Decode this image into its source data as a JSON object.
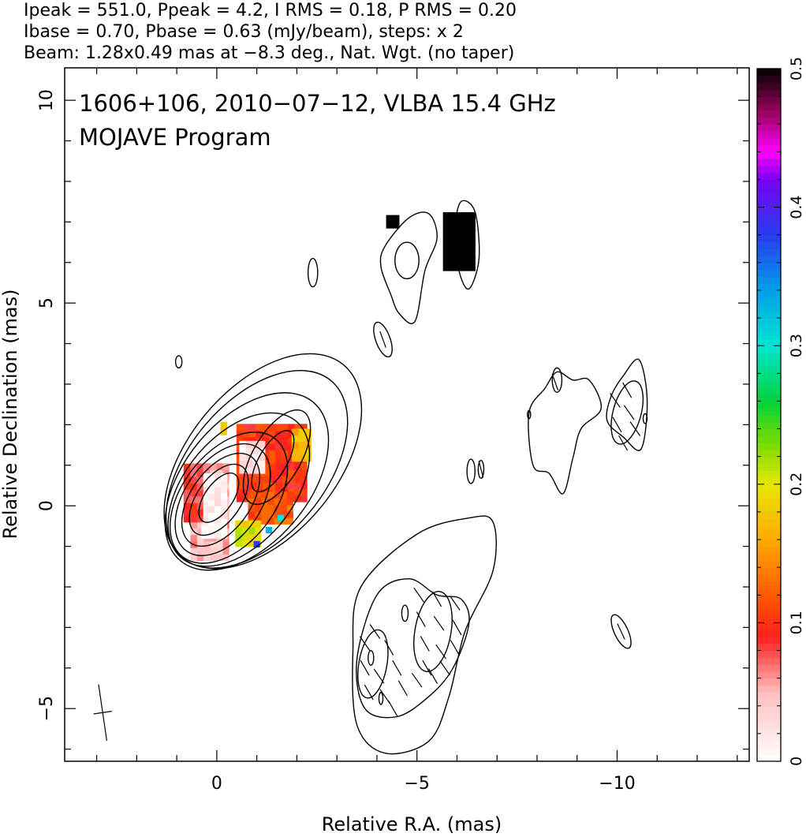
{
  "header": {
    "line1": "Ipeak = 551.0, Ppeak = 4.2, I RMS = 0.18, P RMS = 0.20",
    "line2": "Ibase = 0.70, Pbase = 0.63 (mJy/beam), steps: x 2",
    "line3": "Beam: 1.28x0.49 mas at −8.3 deg., Nat. Wgt. (no taper)"
  },
  "panel": {
    "title_line1": "1606+106, 2010−07−12, VLBA 15.4 GHz",
    "title_line2": "MOJAVE Program"
  },
  "axes": {
    "xlabel": "Relative R.A. (mas)",
    "ylabel": "Relative Declination (mas)"
  },
  "chart_data": {
    "type": "heatmap",
    "description_source": "VLBA 15.4 GHz total intensity contours with fractional polarization color map",
    "x_range": [
      3.8,
      -13.3
    ],
    "y_range": [
      -6.3,
      10.8
    ],
    "x_ticks": [
      {
        "value": 0,
        "label": "0"
      },
      {
        "value": -5,
        "label": "−5"
      },
      {
        "value": -10,
        "label": "−10"
      }
    ],
    "y_ticks": [
      {
        "value": -5,
        "label": "−5"
      },
      {
        "value": 0,
        "label": "0"
      },
      {
        "value": 5,
        "label": "5"
      },
      {
        "value": 10,
        "label": "10"
      }
    ],
    "colorbar": {
      "range": [
        0,
        0.5
      ],
      "ticks": [
        {
          "value": 0,
          "label": "0"
        },
        {
          "value": 0.1,
          "label": "0.1"
        },
        {
          "value": 0.2,
          "label": "0.2"
        },
        {
          "value": 0.3,
          "label": "0.3"
        },
        {
          "value": 0.4,
          "label": "0.4"
        },
        {
          "value": 0.5,
          "label": "0.5"
        }
      ]
    },
    "ipeak_mJy_per_beam": 551.0,
    "ppeak_mJy_per_beam": 4.2,
    "i_rms": 0.18,
    "p_rms": 0.2,
    "ibase": 0.7,
    "pbase": 0.63,
    "contour_step_factor": 2,
    "beam": {
      "major_mas": 1.28,
      "minor_mas": 0.49,
      "pa_deg": -8.3
    },
    "core_contours": [
      {
        "cx": -0.05,
        "cy": 0.2,
        "rx": 0.35,
        "ry": 0.7,
        "angle": 35
      },
      {
        "cx": -0.05,
        "cy": 0.15,
        "rx": 0.55,
        "ry": 1.0,
        "angle": 35
      },
      {
        "cx": -0.1,
        "cy": 0.15,
        "rx": 0.75,
        "ry": 1.3,
        "angle": 35
      },
      {
        "cx": -0.15,
        "cy": 0.15,
        "rx": 0.95,
        "ry": 1.55,
        "angle": 35
      },
      {
        "cx": -0.3,
        "cy": 0.2,
        "rx": 1.15,
        "ry": 1.85,
        "angle": 38
      },
      {
        "cx": -0.55,
        "cy": 0.4,
        "rx": 1.35,
        "ry": 2.2,
        "angle": 40
      },
      {
        "cx": -0.75,
        "cy": 0.6,
        "rx": 1.55,
        "ry": 2.55,
        "angle": 40
      },
      {
        "cx": -1.0,
        "cy": 0.9,
        "rx": 1.7,
        "ry": 2.85,
        "angle": 40
      },
      {
        "cx": -1.15,
        "cy": 1.1,
        "rx": 1.85,
        "ry": 3.1,
        "angle": 40
      }
    ],
    "jet_knot_contours": [
      {
        "cx": -1.4,
        "cy": 1.1,
        "rx": 0.35,
        "ry": 0.85,
        "angle": 30
      },
      {
        "cx": -1.5,
        "cy": 1.2,
        "rx": 0.6,
        "ry": 1.3,
        "angle": 30
      }
    ],
    "isolated_contours": [
      {
        "cx": 0.95,
        "cy": 3.55,
        "rx": 0.08,
        "ry": 0.15,
        "angle": 0
      },
      {
        "cx": -2.4,
        "cy": 5.75,
        "rx": 0.12,
        "ry": 0.35,
        "angle": 0
      },
      {
        "cx": -6.35,
        "cy": 0.85,
        "rx": 0.1,
        "ry": 0.3,
        "angle": 0
      },
      {
        "cx": -6.6,
        "cy": 0.9,
        "rx": 0.07,
        "ry": 0.22,
        "angle": 0
      },
      {
        "cx": -7.8,
        "cy": 2.25,
        "rx": 0.04,
        "ry": 0.1,
        "angle": 0
      },
      {
        "cx": -10.7,
        "cy": 2.15,
        "rx": 0.05,
        "ry": 0.12,
        "angle": 0
      }
    ],
    "northern_component": {
      "outer": [
        [
          -4.2,
          6.4
        ],
        [
          -4.8,
          7.1
        ],
        [
          -5.3,
          7.2
        ],
        [
          -5.5,
          6.6
        ],
        [
          -5.2,
          5.8
        ],
        [
          -4.95,
          4.55
        ],
        [
          -4.55,
          4.75
        ],
        [
          -4.35,
          5.2
        ],
        [
          -4.1,
          5.9
        ]
      ],
      "inner": {
        "cx": -4.75,
        "cy": 6.05,
        "rx": 0.3,
        "ry": 0.45,
        "angle": 0
      },
      "spur": {
        "cx": -4.15,
        "cy": 4.1,
        "rx": 0.18,
        "ry": 0.45,
        "angle": -20
      },
      "blob": [
        [
          -5.95,
          6.8
        ],
        [
          -6.1,
          7.5
        ],
        [
          -6.45,
          7.25
        ],
        [
          -6.55,
          6.1
        ],
        [
          -6.3,
          5.35
        ],
        [
          -6.05,
          5.8
        ]
      ]
    },
    "western_component": {
      "outer": [
        [
          -7.8,
          2.3
        ],
        [
          -8.2,
          2.9
        ],
        [
          -8.5,
          3.3
        ],
        [
          -8.9,
          3.1
        ],
        [
          -9.3,
          3.1
        ],
        [
          -9.6,
          2.4
        ],
        [
          -9.1,
          1.9
        ],
        [
          -8.9,
          1.2
        ],
        [
          -8.65,
          0.3
        ],
        [
          -8.3,
          0.8
        ],
        [
          -7.9,
          1.0
        ]
      ],
      "knot": {
        "cx": -8.5,
        "cy": 3.1,
        "rx": 0.12,
        "ry": 0.3,
        "angle": 0
      },
      "far_outer": [
        [
          -9.85,
          2.7
        ],
        [
          -10.15,
          3.2
        ],
        [
          -10.55,
          3.6
        ],
        [
          -10.75,
          2.6
        ],
        [
          -10.6,
          1.4
        ],
        [
          -10.15,
          1.7
        ],
        [
          -9.75,
          2.1
        ]
      ],
      "far_inner": {
        "cx": -10.25,
        "cy": 2.3,
        "rx": 0.35,
        "ry": 0.8,
        "angle": 15
      },
      "small": {
        "cx": -10.1,
        "cy": -3.1,
        "rx": 0.17,
        "ry": 0.45,
        "angle": -25
      }
    },
    "southern_component": {
      "outer": [
        [
          -3.4,
          -3.6
        ],
        [
          -3.6,
          -2.0
        ],
        [
          -5.0,
          -0.7
        ],
        [
          -6.3,
          -0.3
        ],
        [
          -6.9,
          -0.4
        ],
        [
          -6.9,
          -1.6
        ],
        [
          -6.2,
          -3.1
        ],
        [
          -5.8,
          -4.7
        ],
        [
          -5.3,
          -5.8
        ],
        [
          -4.2,
          -6.1
        ],
        [
          -3.5,
          -5.4
        ]
      ],
      "mid": [
        [
          -3.5,
          -3.8
        ],
        [
          -4.0,
          -2.2
        ],
        [
          -4.8,
          -1.8
        ],
        [
          -5.5,
          -2.2
        ],
        [
          -6.1,
          -2.3
        ],
        [
          -6.3,
          -2.9
        ],
        [
          -5.9,
          -4.0
        ],
        [
          -5.3,
          -4.7
        ],
        [
          -4.5,
          -5.2
        ],
        [
          -3.7,
          -5.0
        ]
      ],
      "inner_left": {
        "cx": -3.9,
        "cy": -3.9,
        "rx": 0.35,
        "ry": 0.85,
        "angle": 10
      },
      "inner_right": {
        "cx": -5.4,
        "cy": -3.1,
        "rx": 0.45,
        "ry": 1.0,
        "angle": 10
      },
      "tiny_a": {
        "cx": -3.85,
        "cy": -3.75,
        "rx": 0.07,
        "ry": 0.18,
        "angle": 0
      },
      "tiny_b": {
        "cx": -4.7,
        "cy": -2.65,
        "rx": 0.08,
        "ry": 0.2,
        "angle": 0
      },
      "tiny_c": {
        "cx": -4.1,
        "cy": -4.75,
        "rx": 0.05,
        "ry": 0.15,
        "angle": 0
      }
    },
    "evpa_vectors": [
      {
        "x": -3.7,
        "y": -3.4,
        "a": -35
      },
      {
        "x": -3.95,
        "y": -3.1,
        "a": -35
      },
      {
        "x": -4.3,
        "y": -3.5,
        "a": -30
      },
      {
        "x": -3.7,
        "y": -4.0,
        "a": -30
      },
      {
        "x": -4.05,
        "y": -4.2,
        "a": -35
      },
      {
        "x": -4.5,
        "y": -4.0,
        "a": -30
      },
      {
        "x": -3.8,
        "y": -4.6,
        "a": -30
      },
      {
        "x": -4.2,
        "y": -4.7,
        "a": -35
      },
      {
        "x": -4.65,
        "y": -4.5,
        "a": -30
      },
      {
        "x": -5.0,
        "y": -4.3,
        "a": -35
      },
      {
        "x": -5.4,
        "y": -4.2,
        "a": -30
      },
      {
        "x": -4.4,
        "y": -5.0,
        "a": -30
      },
      {
        "x": -5.05,
        "y": -2.2,
        "a": -35
      },
      {
        "x": -5.5,
        "y": -2.3,
        "a": -30
      },
      {
        "x": -5.95,
        "y": -2.4,
        "a": -35
      },
      {
        "x": -5.1,
        "y": -2.8,
        "a": -30
      },
      {
        "x": -5.55,
        "y": -2.9,
        "a": -35
      },
      {
        "x": -6.0,
        "y": -3.0,
        "a": -30
      },
      {
        "x": -5.2,
        "y": -3.4,
        "a": -30
      },
      {
        "x": -5.6,
        "y": -3.6,
        "a": -35
      },
      {
        "x": -5.95,
        "y": -3.5,
        "a": -30
      },
      {
        "x": -5.25,
        "y": -4.0,
        "a": -30
      },
      {
        "x": -5.7,
        "y": -4.0,
        "a": -35
      },
      {
        "x": -9.95,
        "y": 2.6,
        "a": -35
      },
      {
        "x": -10.25,
        "y": 2.85,
        "a": -30
      },
      {
        "x": -10.3,
        "y": 2.3,
        "a": -35
      },
      {
        "x": -10.0,
        "y": 2.0,
        "a": -30
      },
      {
        "x": -10.45,
        "y": 1.9,
        "a": -35
      },
      {
        "x": -10.15,
        "y": 1.55,
        "a": -30
      },
      {
        "x": -8.45,
        "y": 3.05,
        "a": -20
      },
      {
        "x": -4.15,
        "y": 4.1,
        "a": -20
      },
      {
        "x": -10.1,
        "y": -3.1,
        "a": -25
      },
      {
        "x": -6.6,
        "y": 0.9,
        "a": -15
      },
      {
        "x": 2.85,
        "y": -5.1,
        "a": -8.3
      }
    ],
    "pol_pixels": {
      "cell_mas": 0.16,
      "core_region": [
        {
          "x0": 0.55,
          "x1": -0.3,
          "y0": -1.35,
          "y1": 0.9,
          "value": 0.05
        },
        {
          "x0": 0.3,
          "x1": -0.25,
          "y0": -0.8,
          "y1": 0.7,
          "value": 0.01
        },
        {
          "x0": 0.75,
          "x1": 0.35,
          "y0": -0.4,
          "y1": 0.95,
          "value": 0.085
        }
      ],
      "jet_region": [
        {
          "x0": -0.6,
          "x1": -2.25,
          "y0": 0.1,
          "y1": 1.95,
          "value": 0.1
        },
        {
          "x0": -0.7,
          "x1": -1.2,
          "y0": 0.8,
          "y1": 1.55,
          "value": 0.02
        },
        {
          "x0": -0.8,
          "x1": -1.9,
          "y0": -0.45,
          "y1": 0.2,
          "value": 0.12
        },
        {
          "x0": -0.6,
          "x1": -1.1,
          "y0": -1.0,
          "y1": -0.4,
          "value": 0.2
        },
        {
          "x0": -2.0,
          "x1": -2.35,
          "y0": 1.1,
          "y1": 1.8,
          "value": 0.17
        },
        {
          "x0": -0.1,
          "x1": -0.25,
          "y0": 1.75,
          "y1": 1.95,
          "value": 0.19
        }
      ],
      "blue_spots": [
        {
          "x": -1.0,
          "y": -0.95,
          "value": 0.38
        },
        {
          "x": -1.3,
          "y": -0.6,
          "value": 0.33
        },
        {
          "x": -1.6,
          "y": -0.3,
          "value": 0.3
        }
      ],
      "black_patches": [
        {
          "x0": -5.75,
          "x1": -6.45,
          "y0": 5.8,
          "y1": 7.2,
          "value": 0.5
        },
        {
          "x0": -4.35,
          "x1": -4.55,
          "y0": 6.85,
          "y1": 7.15,
          "value": 0.5
        }
      ]
    }
  }
}
